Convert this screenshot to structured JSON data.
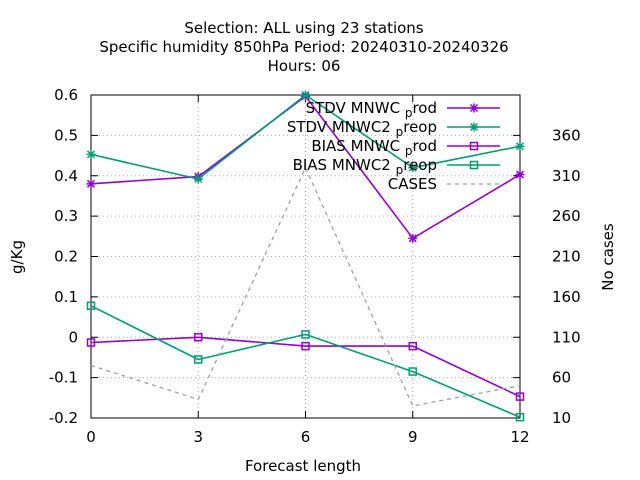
{
  "chart_data": {
    "type": "line",
    "title_lines": [
      "Selection: ALL using    23 stations",
      "Specific humidity 850hPa   Period: 20240310-20240326",
      "Hours:  06"
    ],
    "xlabel": "Forecast length",
    "ylabel": "g/Kg",
    "y2label": "No cases",
    "x": [
      0,
      3,
      6,
      9,
      12
    ],
    "x_ticks": [
      "0",
      "3",
      "6",
      "9",
      "12"
    ],
    "xlim": [
      0,
      12
    ],
    "ylim": [
      -0.2,
      0.6
    ],
    "y_ticks": [
      "-0.2",
      "-0.1",
      "0",
      "0.1",
      "0.2",
      "0.3",
      "0.4",
      "0.5",
      "0.6"
    ],
    "y2lim": [
      10,
      410
    ],
    "y2_ticks": [
      "10",
      "60",
      "110",
      "160",
      "210",
      "260",
      "310",
      "360"
    ],
    "grid": true,
    "legend_position": "top-right",
    "series": [
      {
        "name": "STDV MNWC",
        "sub": "p",
        "suffix": "rod",
        "axis": "y",
        "color": "#9400d3",
        "marker": "x",
        "dash": false,
        "values": [
          0.38,
          0.398,
          0.597,
          0.245,
          0.403
        ]
      },
      {
        "name": "STDV MNWC2",
        "sub": "p",
        "suffix": "reop",
        "axis": "y",
        "color": "#009e73",
        "marker": "x",
        "dash": false,
        "values": [
          0.453,
          0.392,
          0.6,
          0.42,
          0.473
        ]
      },
      {
        "name": "BIAS MNWC",
        "sub": "p",
        "suffix": "rod",
        "axis": "y",
        "color": "#9400d3",
        "marker": "square",
        "dash": false,
        "values": [
          -0.013,
          0.0,
          -0.022,
          -0.022,
          -0.147
        ]
      },
      {
        "name": "BIAS MNWC2",
        "sub": "p",
        "suffix": "reop",
        "axis": "y",
        "color": "#009e73",
        "marker": "square",
        "dash": false,
        "values": [
          0.078,
          -0.055,
          0.007,
          -0.085,
          -0.198
        ]
      },
      {
        "name": "CASES",
        "sub": "",
        "suffix": "",
        "axis": "y2",
        "color": "#a0a0a0",
        "marker": "none",
        "dash": true,
        "values": [
          75,
          33,
          320,
          25,
          50
        ]
      }
    ]
  }
}
